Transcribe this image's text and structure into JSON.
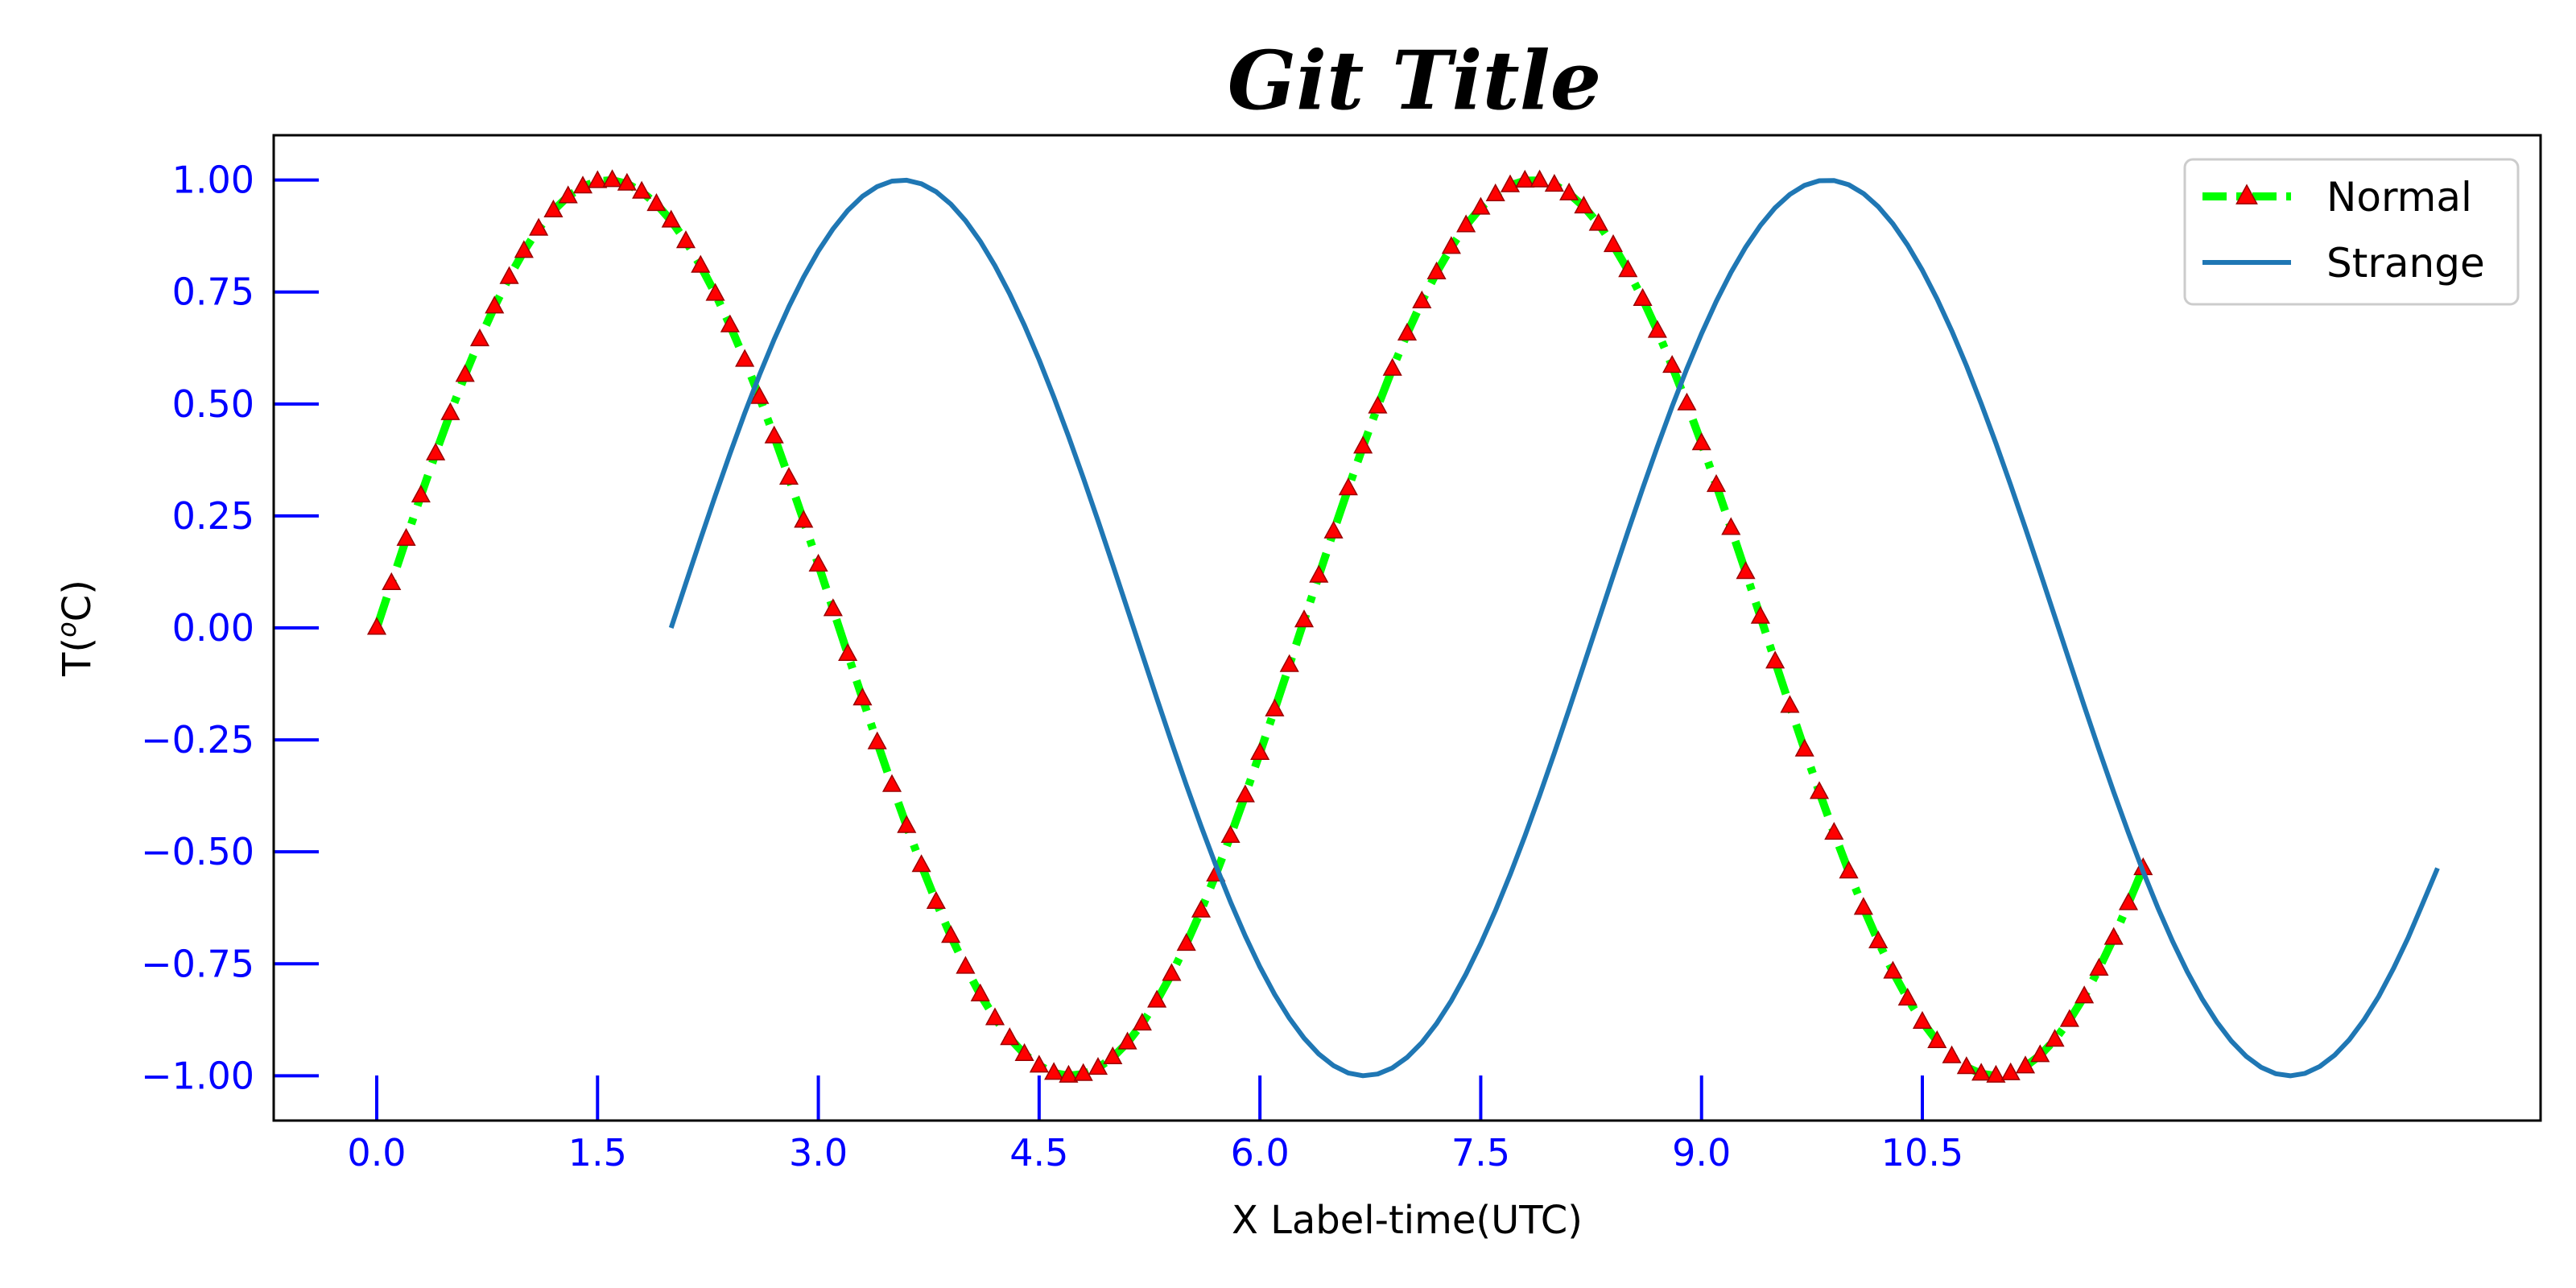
{
  "chart_data": {
    "type": "line",
    "title": "Git Title",
    "xlabel": "X Label-time(UTC)",
    "ylabel": "T(°C)",
    "xlim": [
      -0.7,
      14.7
    ],
    "ylim": [
      -1.1,
      1.1
    ],
    "xticks": [
      0,
      1.5,
      3,
      4.5,
      6,
      7.5,
      9,
      10.5
    ],
    "xtick_labels": [
      "0.0",
      "1.5",
      "3.0",
      "4.5",
      "6.0",
      "7.5",
      "9.0",
      "10.5"
    ],
    "yticks": [
      1,
      0.75,
      0.5,
      0.25,
      0,
      -0.25,
      -0.5,
      -0.75,
      -1
    ],
    "ytick_labels": [
      "1.00",
      "0.75",
      "0.50",
      "0.25",
      "0.00",
      "−0.25",
      "−0.50",
      "−0.75",
      "−1.00"
    ],
    "grid": false,
    "legend_position": "top-right",
    "tick_color": "#0000ff",
    "series": [
      {
        "name": "Normal",
        "color": "#00ff00",
        "marker_color": "#ff0000",
        "style": "dashdot",
        "marker": "triangle",
        "x": [
          0,
          0.1,
          0.2,
          0.3,
          0.4,
          0.5,
          0.6,
          0.7,
          0.8,
          0.9,
          1.0,
          1.1,
          1.2,
          1.3,
          1.4,
          1.5,
          1.6,
          1.7,
          1.8,
          1.9,
          2.0,
          2.1,
          2.2,
          2.3,
          2.4,
          2.5,
          2.6,
          2.7,
          2.8,
          2.9,
          3.0,
          3.1,
          3.2,
          3.3,
          3.4,
          3.5,
          3.6,
          3.7,
          3.8,
          3.9,
          4.0,
          4.1,
          4.2,
          4.3,
          4.4,
          4.5,
          4.6,
          4.7,
          4.8,
          4.9,
          5.0,
          5.1,
          5.2,
          5.3,
          5.4,
          5.5,
          5.6,
          5.7,
          5.8,
          5.9,
          6.0,
          6.1,
          6.2,
          6.3,
          6.4,
          6.5,
          6.6,
          6.7,
          6.8,
          6.9,
          7.0,
          7.1,
          7.2,
          7.3,
          7.4,
          7.5,
          7.6,
          7.7,
          7.8,
          7.9,
          8.0,
          8.1,
          8.2,
          8.3,
          8.4,
          8.5,
          8.6,
          8.7,
          8.8,
          8.9,
          9.0,
          9.1,
          9.2,
          9.3,
          9.4,
          9.5,
          9.6,
          9.7,
          9.8,
          9.9,
          10.0,
          10.1,
          10.2,
          10.3,
          10.4,
          10.5,
          10.6,
          10.7,
          10.8,
          10.9,
          11.0,
          11.1,
          11.2,
          11.3,
          11.4,
          11.5,
          11.6,
          11.7,
          11.8,
          11.9,
          12.0
        ],
        "y": [
          0.0,
          0.0998,
          0.1987,
          0.2955,
          0.3894,
          0.4794,
          0.5646,
          0.6442,
          0.7174,
          0.7833,
          0.8415,
          0.8912,
          0.932,
          0.9636,
          0.9854,
          0.9975,
          0.9996,
          0.9917,
          0.9738,
          0.9463,
          0.9093,
          0.8632,
          0.8085,
          0.7457,
          0.6755,
          0.5985,
          0.5155,
          0.4274,
          0.335,
          0.2392,
          0.1411,
          0.0416,
          -0.0584,
          -0.1577,
          -0.2555,
          -0.3508,
          -0.4425,
          -0.5298,
          -0.6119,
          -0.6878,
          -0.7568,
          -0.8183,
          -0.8716,
          -0.9162,
          -0.9516,
          -0.9775,
          -0.9937,
          -0.9999,
          -0.9962,
          -0.9825,
          -0.9589,
          -0.9258,
          -0.8835,
          -0.8323,
          -0.7728,
          -0.7055,
          -0.6313,
          -0.5507,
          -0.4646,
          -0.3739,
          -0.2794,
          -0.1822,
          -0.0831,
          0.0168,
          0.1165,
          0.2151,
          0.3115,
          0.4048,
          0.4941,
          0.5784,
          0.657,
          0.729,
          0.7937,
          0.8504,
          0.8987,
          0.938,
          0.9679,
          0.9882,
          0.9985,
          0.9989,
          0.9894,
          0.9699,
          0.9407,
          0.9022,
          0.8546,
          0.7985,
          0.7344,
          0.663,
          0.585,
          0.501,
          0.4121,
          0.319,
          0.2229,
          0.1245,
          0.0248,
          -0.0752,
          -0.1743,
          -0.2718,
          -0.3665,
          -0.4575,
          -0.544,
          -0.6251,
          -0.6999,
          -0.7677,
          -0.8278,
          -0.8797,
          -0.9228,
          -0.9566,
          -0.9809,
          -0.9954,
          -1.0,
          -0.9946,
          -0.9792,
          -0.9542,
          -0.9197,
          -0.8755,
          -0.8228,
          -0.761,
          -0.6921,
          -0.6149,
          -0.5366
        ]
      },
      {
        "name": "Strange",
        "color": "#1f77b4",
        "style": "solid",
        "x": [
          2.0,
          2.1,
          2.2,
          2.3,
          2.4,
          2.5,
          2.6,
          2.7,
          2.8,
          2.9,
          3.0,
          3.1,
          3.2,
          3.3,
          3.4,
          3.5,
          3.6,
          3.7,
          3.8,
          3.9,
          4.0,
          4.1,
          4.2,
          4.3,
          4.4,
          4.5,
          4.6,
          4.7,
          4.8,
          4.9,
          5.0,
          5.1,
          5.2,
          5.3,
          5.4,
          5.5,
          5.6,
          5.7,
          5.8,
          5.9,
          6.0,
          6.1,
          6.2,
          6.3,
          6.4,
          6.5,
          6.6,
          6.7,
          6.8,
          6.9,
          7.0,
          7.1,
          7.2,
          7.3,
          7.4,
          7.5,
          7.6,
          7.7,
          7.8,
          7.9,
          8.0,
          8.1,
          8.2,
          8.3,
          8.4,
          8.5,
          8.6,
          8.7,
          8.8,
          8.9,
          9.0,
          9.1,
          9.2,
          9.3,
          9.4,
          9.5,
          9.6,
          9.7,
          9.8,
          9.9,
          10.0,
          10.1,
          10.2,
          10.3,
          10.4,
          10.5,
          10.6,
          10.7,
          10.8,
          10.9,
          11.0,
          11.1,
          11.2,
          11.3,
          11.4,
          11.5,
          11.6,
          11.7,
          11.8,
          11.9,
          12.0,
          12.1,
          12.2,
          12.3,
          12.4,
          12.5,
          12.6,
          12.7,
          12.8,
          12.9,
          13.0,
          13.1,
          13.2,
          13.3,
          13.4,
          13.5,
          13.6,
          13.7,
          13.8,
          13.9,
          14.0
        ],
        "y": [
          0.0,
          0.0998,
          0.1987,
          0.2955,
          0.3894,
          0.4794,
          0.5646,
          0.6442,
          0.7174,
          0.7833,
          0.8415,
          0.8912,
          0.932,
          0.9636,
          0.9854,
          0.9975,
          0.9996,
          0.9917,
          0.9738,
          0.9463,
          0.9093,
          0.8632,
          0.8085,
          0.7457,
          0.6755,
          0.5985,
          0.5155,
          0.4274,
          0.335,
          0.2392,
          0.1411,
          0.0416,
          -0.0584,
          -0.1577,
          -0.2555,
          -0.3508,
          -0.4425,
          -0.5298,
          -0.6119,
          -0.6878,
          -0.7568,
          -0.8183,
          -0.8716,
          -0.9162,
          -0.9516,
          -0.9775,
          -0.9937,
          -0.9999,
          -0.9962,
          -0.9825,
          -0.9589,
          -0.9258,
          -0.8835,
          -0.8323,
          -0.7728,
          -0.7055,
          -0.6313,
          -0.5507,
          -0.4646,
          -0.3739,
          -0.2794,
          -0.1822,
          -0.0831,
          0.0168,
          0.1165,
          0.2151,
          0.3115,
          0.4048,
          0.4941,
          0.5784,
          0.657,
          0.729,
          0.7937,
          0.8504,
          0.8987,
          0.938,
          0.9679,
          0.9882,
          0.9985,
          0.9989,
          0.9894,
          0.9699,
          0.9407,
          0.9022,
          0.8546,
          0.7985,
          0.7344,
          0.663,
          0.585,
          0.501,
          0.4121,
          0.319,
          0.2229,
          0.1245,
          0.0248,
          -0.0752,
          -0.1743,
          -0.2718,
          -0.3665,
          -0.4575,
          -0.544,
          -0.6251,
          -0.6999,
          -0.7677,
          -0.8278,
          -0.8797,
          -0.9228,
          -0.9566,
          -0.9809,
          -0.9954,
          -1.0,
          -0.9946,
          -0.9792,
          -0.9542,
          -0.9197,
          -0.8755,
          -0.8228,
          -0.761,
          -0.6921,
          -0.6149,
          -0.5366
        ]
      }
    ]
  }
}
